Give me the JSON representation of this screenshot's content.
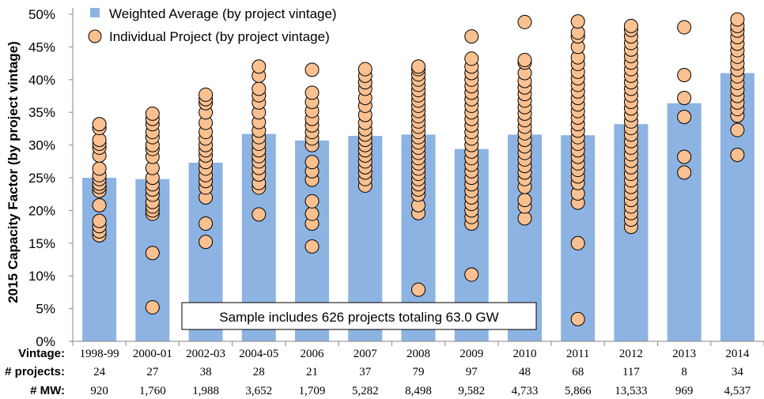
{
  "chart_data": {
    "type": "bar",
    "ylabel": "2015 Capacity Factor (by project vintage)",
    "ylim": [
      0,
      50
    ],
    "yticks": [
      "0%",
      "5%",
      "10%",
      "15%",
      "20%",
      "25%",
      "30%",
      "35%",
      "40%",
      "45%",
      "50%"
    ],
    "grid": false,
    "legend_position": "top-left",
    "categories": [
      "1998-99",
      "2000-01",
      "2002-03",
      "2004-05",
      "2006",
      "2007",
      "2008",
      "2009",
      "2010",
      "2011",
      "2012",
      "2013",
      "2014"
    ],
    "series": [
      {
        "name": "Weighted Average (by project vintage)",
        "kind": "bar",
        "color": "#8DB3E2",
        "values": [
          25.0,
          24.8,
          27.3,
          31.7,
          30.7,
          31.4,
          31.6,
          29.4,
          31.6,
          31.5,
          33.2,
          36.4,
          41.0
        ]
      },
      {
        "name": "Individual Project (by project vintage)",
        "kind": "scatter",
        "color": "#FAC090",
        "points": [
          [
            16.2,
            16.8,
            17.6,
            18.4,
            20.8,
            23.0,
            23.6,
            24.1,
            24.8,
            25.4,
            26.4,
            28.4,
            29.6,
            30.2,
            30.8,
            32.6,
            33.2
          ],
          [
            5.2,
            13.5,
            19.5,
            20.0,
            20.6,
            21.3,
            22.4,
            23.2,
            24.0,
            25.0,
            26.5,
            28.2,
            29.4,
            30.0,
            31.2,
            32.0,
            33.2,
            34.0,
            34.8
          ],
          [
            15.2,
            18.0,
            22.0,
            23.5,
            24.5,
            25.4,
            26.4,
            27.4,
            28.4,
            29.2,
            30.0,
            31.0,
            32.0,
            33.4,
            35.0,
            36.4,
            37.0,
            37.7
          ],
          [
            19.4,
            23.5,
            24.2,
            25.5,
            26.5,
            27.5,
            28.3,
            29.2,
            30.2,
            31.2,
            32.2,
            33.5,
            35.0,
            36.5,
            37.6,
            38.6,
            40.6,
            42.0
          ],
          [
            14.5,
            18.0,
            19.5,
            21.4,
            24.7,
            26.0,
            27.4,
            30.0,
            31.0,
            32.0,
            33.0,
            34.0,
            35.2,
            36.6,
            38.0,
            41.5
          ],
          [
            23.8,
            24.8,
            25.8,
            26.6,
            27.5,
            28.4,
            29.2,
            30.0,
            30.8,
            31.6,
            32.4,
            33.4,
            34.6,
            36.0,
            37.2,
            38.6,
            39.6,
            40.6,
            41.6
          ],
          [
            7.9,
            19.6,
            20.8,
            22.4,
            23.2,
            24.0,
            24.8,
            25.6,
            26.4,
            27.2,
            28.0,
            28.8,
            29.6,
            30.4,
            31.2,
            32.0,
            32.8,
            33.6,
            34.4,
            35.2,
            36.0,
            36.8,
            37.6,
            38.4,
            39.2,
            40.0,
            40.8,
            41.6,
            42.0
          ],
          [
            10.2,
            18.0,
            19.0,
            20.0,
            21.0,
            22.0,
            23.0,
            24.0,
            25.0,
            26.0,
            27.0,
            28.0,
            29.0,
            30.0,
            31.0,
            32.0,
            33.0,
            34.0,
            35.0,
            36.0,
            37.0,
            38.0,
            39.0,
            40.0,
            41.0,
            42.0,
            43.2,
            46.6
          ],
          [
            18.8,
            20.6,
            21.6,
            23.6,
            24.8,
            25.8,
            26.8,
            27.8,
            28.8,
            29.8,
            30.8,
            31.8,
            32.8,
            33.8,
            34.8,
            35.8,
            36.8,
            37.8,
            38.8,
            39.8,
            41.0,
            42.6,
            43.0,
            48.8
          ],
          [
            3.4,
            15.0,
            21.2,
            22.6,
            24.2,
            25.2,
            26.2,
            27.2,
            28.2,
            29.2,
            30.2,
            31.2,
            32.2,
            33.2,
            34.2,
            35.2,
            36.2,
            37.2,
            38.2,
            39.2,
            40.2,
            41.2,
            42.4,
            43.4,
            45.0,
            46.6,
            47.2,
            48.9
          ],
          [
            17.5,
            18.6,
            19.6,
            20.6,
            21.6,
            22.6,
            23.6,
            24.6,
            25.6,
            26.6,
            27.6,
            28.6,
            29.6,
            30.6,
            31.6,
            32.6,
            33.6,
            34.6,
            35.6,
            36.6,
            37.6,
            38.6,
            39.6,
            40.6,
            41.6,
            42.6,
            43.6,
            44.6,
            45.6,
            46.6,
            47.6,
            48.2
          ],
          [
            25.8,
            28.2,
            34.3,
            37.2,
            40.7,
            48.0
          ],
          [
            28.5,
            32.3,
            34.5,
            35.5,
            36.5,
            37.5,
            38.5,
            39.5,
            40.5,
            41.5,
            42.5,
            43.5,
            44.5,
            45.5,
            46.5,
            47.5,
            48.2,
            49.2
          ]
        ]
      }
    ],
    "table_rows": [
      {
        "label": "Vintage:",
        "values": [
          "1998-99",
          "2000-01",
          "2002-03",
          "2004-05",
          "2006",
          "2007",
          "2008",
          "2009",
          "2010",
          "2011",
          "2012",
          "2013",
          "2014"
        ]
      },
      {
        "label": "# projects:",
        "values": [
          "24",
          "27",
          "38",
          "28",
          "21",
          "37",
          "79",
          "97",
          "48",
          "68",
          "117",
          "8",
          "34"
        ]
      },
      {
        "label": "# MW:",
        "values": [
          "920",
          "1,760",
          "1,988",
          "3,652",
          "1,709",
          "5,282",
          "8,498",
          "9,582",
          "4,733",
          "5,866",
          "13,533",
          "969",
          "4,537"
        ]
      }
    ],
    "annotation": "Sample includes 626 projects totaling 63.0 GW"
  }
}
